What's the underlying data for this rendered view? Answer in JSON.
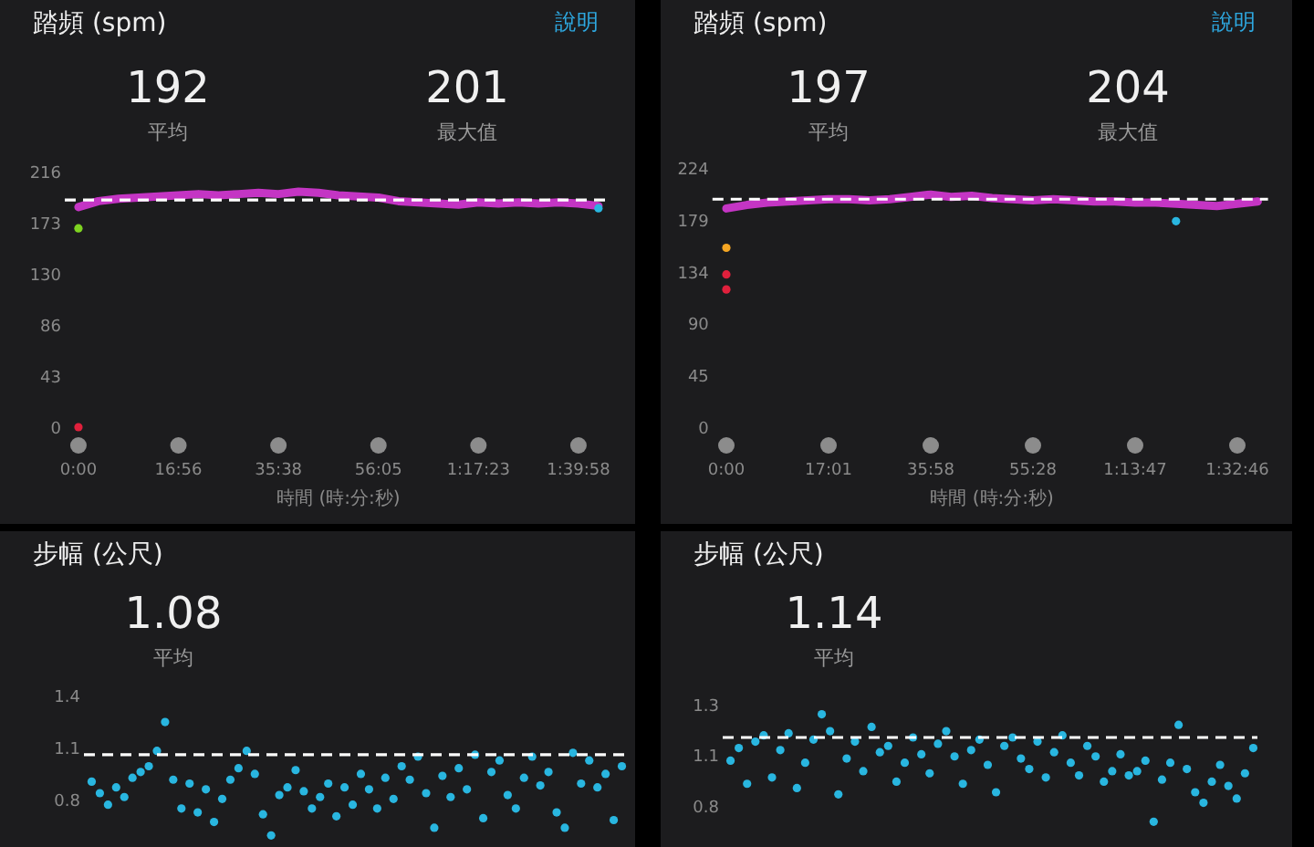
{
  "chart_data": [
    {
      "type": "line",
      "title": "踏頻 (spm)",
      "xlabel": "時間 (時:分:秒)",
      "annotations": [
        "192",
        "平均",
        "201",
        "最大值",
        "說明"
      ],
      "categories": [
        "0:00",
        null,
        null,
        null,
        null,
        "16:56",
        null,
        null,
        null,
        null,
        "35:38",
        null,
        null,
        null,
        null,
        "56:05",
        null,
        null,
        null,
        null,
        "1:17:23",
        null,
        null,
        null,
        null,
        "1:39:58",
        null
      ],
      "ylim": [
        0,
        216
      ],
      "yticks": [
        0,
        {
          "value": 43.2,
          "label": "43"
        },
        {
          "value": 86.4,
          "label": "86"
        },
        {
          "value": 129.6,
          "label": "130"
        },
        {
          "value": 172.8,
          "label": "173"
        },
        216
      ],
      "ref_lines": [
        {
          "axis": "y",
          "value": 192,
          "color": "#ffffff",
          "line_style": "dashed"
        }
      ],
      "series": [
        {
          "type": "line",
          "color": "#c435c4",
          "values": [
            186,
            191,
            193,
            194,
            195,
            196,
            197,
            196,
            197,
            198,
            197,
            199,
            198,
            196,
            195,
            194,
            191,
            190,
            189,
            188,
            190,
            189,
            190,
            189,
            190,
            189,
            187
          ]
        },
        {
          "type": "scatter",
          "marker": "circle",
          "values": [
            0,
            null,
            null,
            null,
            null,
            null,
            null,
            null,
            null,
            null,
            null,
            null,
            null,
            null,
            null,
            null,
            null,
            null,
            null,
            null,
            null,
            null,
            null,
            null,
            null,
            null,
            185
          ],
          "colors": [
            "#e0203c",
            null,
            null,
            null,
            null,
            null,
            null,
            null,
            null,
            null,
            null,
            null,
            null,
            null,
            null,
            null,
            null,
            null,
            null,
            null,
            null,
            null,
            null,
            null,
            null,
            null,
            "#29b6e0"
          ]
        },
        {
          "type": "scatter",
          "marker": "circle",
          "color": "#7ed321",
          "values": [
            168,
            null,
            null,
            null,
            null,
            null,
            null,
            null,
            null,
            null,
            null,
            null,
            null,
            null,
            null,
            null,
            null,
            null,
            null,
            null,
            null,
            null,
            null,
            null,
            null,
            null,
            null
          ]
        }
      ]
    },
    {
      "type": "line",
      "title": "踏頻 (spm)",
      "xlabel": "時間 (時:分:秒)",
      "annotations": [
        "197",
        "平均",
        "204",
        "最大值",
        "說明"
      ],
      "categories": [
        "0:00",
        null,
        null,
        null,
        null,
        "17:01",
        null,
        null,
        null,
        null,
        "35:58",
        null,
        null,
        null,
        null,
        "55:28",
        null,
        null,
        null,
        null,
        "1:13:47",
        null,
        null,
        null,
        null,
        "1:32:46",
        null
      ],
      "ylim": [
        0,
        224
      ],
      "yticks": [
        0,
        {
          "value": 44.8,
          "label": "45"
        },
        {
          "value": 89.6,
          "label": "90"
        },
        {
          "value": 134.4,
          "label": "134"
        },
        {
          "value": 179.2,
          "label": "179"
        },
        224
      ],
      "ref_lines": [
        {
          "axis": "y",
          "value": 197,
          "color": "#ffffff",
          "line_style": "dashed"
        }
      ],
      "series": [
        {
          "type": "line",
          "color": "#c435c4",
          "values": [
            189,
            192,
            194,
            195,
            196,
            197,
            197,
            196,
            197,
            199,
            201,
            199,
            200,
            198,
            197,
            196,
            197,
            196,
            195,
            195,
            194,
            194,
            193,
            192,
            191,
            193,
            195
          ]
        },
        {
          "type": "scatter",
          "marker": "circle",
          "values": [
            132,
            null,
            null,
            null,
            null,
            null,
            null,
            null,
            null,
            null,
            null,
            null,
            null,
            null,
            null,
            null,
            null,
            null,
            null,
            null,
            null,
            null,
            178,
            null,
            null,
            null,
            null
          ],
          "colors": [
            "#e0203c",
            null,
            null,
            null,
            null,
            null,
            null,
            null,
            null,
            null,
            null,
            null,
            null,
            null,
            null,
            null,
            null,
            null,
            null,
            null,
            null,
            null,
            "#29b6e0",
            null,
            null,
            null,
            null
          ]
        },
        {
          "type": "scatter",
          "marker": "circle",
          "color": "#e0203c",
          "values": [
            119,
            null,
            null,
            null,
            null,
            null,
            null,
            null,
            null,
            null,
            null,
            null,
            null,
            null,
            null,
            null,
            null,
            null,
            null,
            null,
            null,
            null,
            null,
            null,
            null,
            null,
            null
          ]
        },
        {
          "type": "scatter",
          "marker": "circle",
          "color": "#f5a623",
          "values": [
            155,
            null,
            null,
            null,
            null,
            null,
            null,
            null,
            null,
            null,
            null,
            null,
            null,
            null,
            null,
            null,
            null,
            null,
            null,
            null,
            null,
            null,
            null,
            null,
            null,
            null,
            null
          ]
        }
      ]
    },
    {
      "type": "scatter",
      "marker": "circle",
      "title": "步幅 (公尺)",
      "annotations": [
        "1.08",
        "平均"
      ],
      "tick_labels": "y",
      "categories": [
        null,
        null,
        null,
        null,
        null,
        null,
        null,
        null,
        null,
        null,
        null,
        null,
        null,
        null,
        null,
        null,
        null,
        null,
        null,
        null,
        null,
        null,
        null,
        null,
        null,
        null,
        null,
        null,
        null,
        null,
        null,
        null,
        null,
        null,
        null,
        null,
        null,
        null,
        null,
        null,
        null,
        null,
        null,
        null,
        null,
        null,
        null,
        null,
        null,
        null,
        null,
        null,
        null,
        null,
        null,
        null,
        null,
        null,
        null,
        null,
        null,
        null,
        null,
        null,
        null,
        null
      ],
      "ylim": [
        0.6,
        1.388
      ],
      "yticks": [
        {
          "value": 0.848,
          "label": "0.8"
        },
        {
          "value": 1.118,
          "label": "1.1"
        },
        {
          "value": 1.388,
          "label": "1.4"
        }
      ],
      "ref_lines": [
        {
          "axis": "y",
          "value": 1.08,
          "color": "#ffffff",
          "line_style": "dashed"
        }
      ],
      "series": [
        {
          "color": "#29b6e0",
          "values": [
            0.94,
            0.88,
            0.82,
            0.91,
            0.86,
            0.96,
            0.99,
            1.02,
            1.1,
            1.25,
            0.95,
            0.8,
            0.93,
            0.78,
            0.9,
            0.73,
            0.85,
            0.95,
            1.01,
            1.1,
            0.98,
            0.77,
            0.66,
            0.87,
            0.91,
            1.0,
            0.89,
            0.8,
            0.86,
            0.93,
            0.76,
            0.91,
            0.82,
            0.98,
            0.9,
            0.8,
            0.96,
            0.85,
            1.02,
            0.95,
            1.07,
            0.88,
            0.7,
            0.97,
            0.86,
            1.01,
            0.9,
            1.08,
            0.75,
            0.99,
            1.05,
            0.87,
            0.8,
            0.96,
            1.07,
            0.92,
            0.99,
            0.78,
            0.7,
            1.09,
            0.93,
            1.05,
            0.91,
            0.98,
            0.74,
            1.02
          ]
        }
      ]
    },
    {
      "type": "scatter",
      "marker": "circle",
      "title": "步幅 (公尺)",
      "annotations": [
        "1.14",
        "平均"
      ],
      "tick_labels": "y",
      "categories": [
        null,
        null,
        null,
        null,
        null,
        null,
        null,
        null,
        null,
        null,
        null,
        null,
        null,
        null,
        null,
        null,
        null,
        null,
        null,
        null,
        null,
        null,
        null,
        null,
        null,
        null,
        null,
        null,
        null,
        null,
        null,
        null,
        null,
        null,
        null,
        null,
        null,
        null,
        null,
        null,
        null,
        null,
        null,
        null,
        null,
        null,
        null,
        null,
        null,
        null,
        null,
        null,
        null,
        null,
        null,
        null,
        null,
        null,
        null,
        null,
        null,
        null,
        null,
        null
      ],
      "ylim": [
        0.62,
        1.296
      ],
      "yticks": [
        {
          "value": 0.816,
          "label": "0.8"
        },
        {
          "value": 1.056,
          "label": "1.1"
        },
        {
          "value": 1.296,
          "label": "1.3"
        }
      ],
      "ref_lines": [
        {
          "axis": "y",
          "value": 1.14,
          "color": "#ffffff",
          "line_style": "dashed"
        }
      ],
      "series": [
        {
          "color": "#29b6e0",
          "values": [
            1.03,
            1.09,
            0.92,
            1.12,
            1.15,
            0.95,
            1.08,
            1.16,
            0.9,
            1.02,
            1.13,
            1.25,
            1.17,
            0.87,
            1.04,
            1.12,
            0.98,
            1.19,
            1.07,
            1.1,
            0.93,
            1.02,
            1.14,
            1.06,
            0.97,
            1.11,
            1.17,
            1.05,
            0.92,
            1.08,
            1.13,
            1.01,
            0.88,
            1.1,
            1.14,
            1.04,
            0.99,
            1.12,
            0.95,
            1.07,
            1.15,
            1.02,
            0.96,
            1.1,
            1.05,
            0.93,
            0.98,
            1.06,
            0.96,
            0.98,
            1.03,
            0.74,
            0.94,
            1.02,
            1.2,
            0.99,
            0.88,
            0.83,
            0.93,
            1.01,
            0.91,
            0.85,
            0.97,
            1.09
          ]
        }
      ]
    }
  ]
}
